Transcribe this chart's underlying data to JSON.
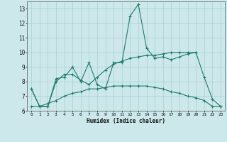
{
  "xlabel": "Humidex (Indice chaleur)",
  "x": [
    0,
    1,
    2,
    3,
    4,
    5,
    6,
    7,
    8,
    9,
    10,
    11,
    12,
    13,
    14,
    15,
    16,
    17,
    18,
    19,
    20,
    21,
    22,
    23
  ],
  "line1": [
    7.5,
    6.3,
    6.3,
    8.2,
    8.3,
    9.0,
    8.0,
    9.3,
    7.8,
    7.5,
    9.3,
    9.3,
    12.5,
    13.3,
    10.3,
    9.6,
    9.7,
    9.5,
    9.7,
    9.9,
    10.0,
    8.3,
    6.8,
    6.3
  ],
  "line2": [
    7.5,
    6.3,
    6.3,
    8.0,
    8.5,
    8.5,
    8.1,
    7.8,
    8.3,
    8.8,
    9.2,
    9.4,
    9.6,
    9.7,
    9.8,
    9.8,
    9.9,
    10.0,
    10.0,
    10.0,
    10.0,
    null,
    null,
    null
  ],
  "line3": [
    6.3,
    6.3,
    6.5,
    6.7,
    7.0,
    7.2,
    7.3,
    7.5,
    7.5,
    7.6,
    7.7,
    7.7,
    7.7,
    7.7,
    7.7,
    7.6,
    7.5,
    7.3,
    7.2,
    7.0,
    6.9,
    6.7,
    6.3,
    6.3
  ],
  "line_color": "#1f7a6e",
  "bg_color": "#cce8ea",
  "grid_color": "#aacdd4",
  "ylim": [
    6,
    13.5
  ],
  "xlim": [
    -0.5,
    23.5
  ],
  "yticks": [
    6,
    7,
    8,
    9,
    10,
    11,
    12,
    13
  ],
  "xticks": [
    0,
    1,
    2,
    3,
    4,
    5,
    6,
    7,
    8,
    9,
    10,
    11,
    12,
    13,
    14,
    15,
    16,
    17,
    18,
    19,
    20,
    21,
    22,
    23
  ]
}
